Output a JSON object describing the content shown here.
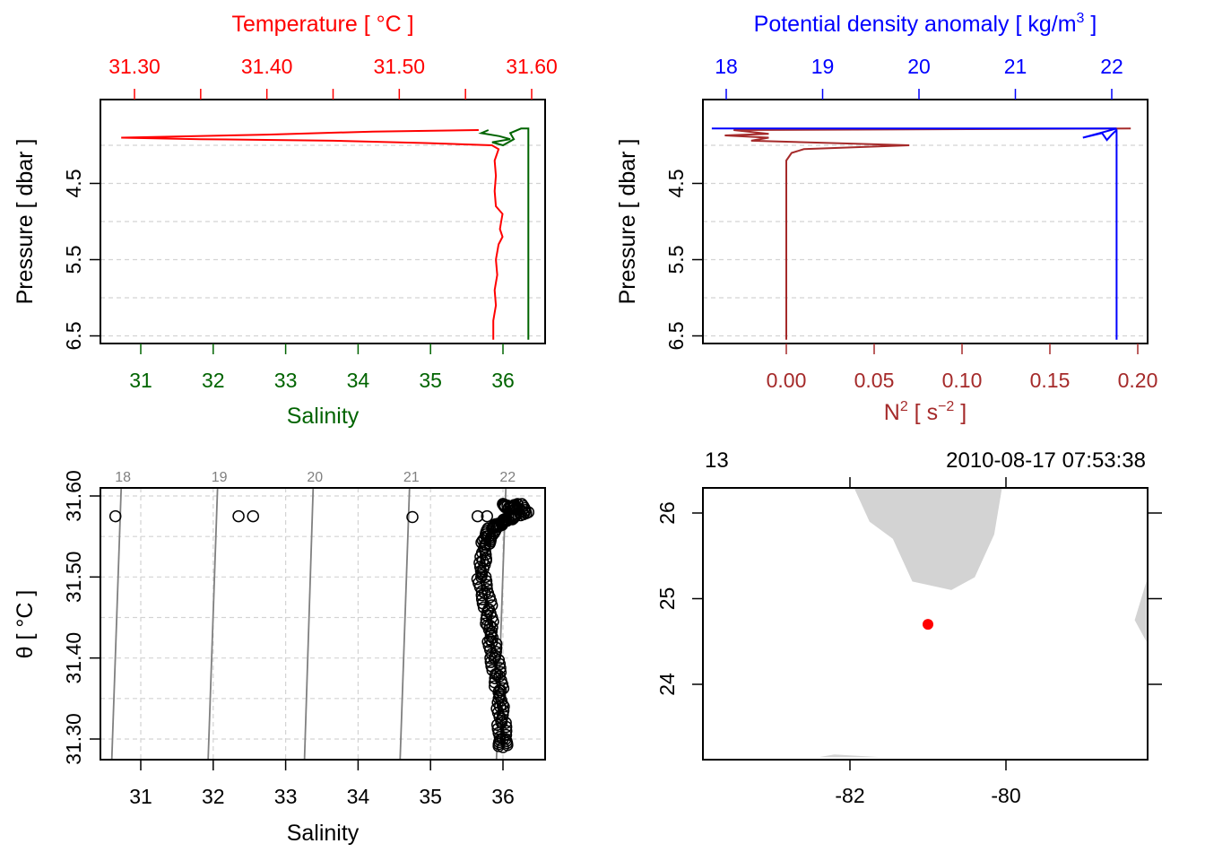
{
  "colors": {
    "temperature": "#ff0000",
    "salinity": "#006400",
    "density": "#0000ff",
    "n2": "#a52a2a",
    "isopycnal": "#808080",
    "land": "#d3d3d3",
    "station": "#ff0000",
    "grid": "#d3d3d3"
  },
  "chart_data": [
    {
      "id": "profile-salinity-temperature",
      "type": "line",
      "title": "",
      "top_axis": {
        "label": "Temperature [ °C ]",
        "ticks": [
          "31.30",
          "31.40",
          "31.50",
          "31.60"
        ],
        "range": [
          31.28,
          31.6
        ]
      },
      "bottom_axis": {
        "label": "Salinity",
        "ticks": [
          "31",
          "32",
          "33",
          "34",
          "35",
          "36"
        ],
        "range": [
          30.6,
          36.35
        ]
      },
      "left_axis": {
        "label": "Pressure [ dbar ]",
        "ticks": [
          "4.5",
          "5.5",
          "6.5"
        ],
        "range": [
          3.4,
          6.6
        ],
        "reversed": true,
        "gridlines": [
          4.0,
          4.5,
          5.0,
          5.5,
          6.0,
          6.5
        ]
      },
      "series": [
        {
          "name": "Temperature",
          "color": "temperature",
          "pressure": [
            3.8,
            3.82,
            3.86,
            3.9,
            3.92,
            3.94,
            3.97,
            4.0,
            4.05,
            4.2,
            4.4,
            4.6,
            4.8,
            4.9,
            5.0,
            5.1,
            5.2,
            5.3,
            5.5,
            5.7,
            5.9,
            6.1,
            6.3,
            6.55
          ],
          "value": [
            31.56,
            31.48,
            31.4,
            31.29,
            31.35,
            31.45,
            31.52,
            31.57,
            31.575,
            31.572,
            31.573,
            31.572,
            31.573,
            31.578,
            31.577,
            31.576,
            31.578,
            31.575,
            31.573,
            31.574,
            31.572,
            31.573,
            31.571,
            31.571
          ]
        },
        {
          "name": "Salinity",
          "color": "salinity",
          "pressure": [
            3.8,
            3.84,
            3.88,
            3.92,
            3.96,
            4.0,
            3.92,
            3.84,
            3.78,
            3.78,
            6.55
          ],
          "value": [
            35.8,
            35.7,
            35.95,
            36.1,
            35.85,
            36.0,
            36.15,
            36.1,
            36.25,
            36.35,
            36.35
          ]
        }
      ]
    },
    {
      "id": "profile-density-n2",
      "type": "line",
      "title": "",
      "top_axis": {
        "label": "Potential density anomaly [ kg/m",
        "label_superscript": "3",
        "label_suffix": " ]",
        "ticks": [
          "18",
          "19",
          "20",
          "21",
          "22"
        ],
        "range": [
          17.85,
          22.25
        ]
      },
      "bottom_axis": {
        "label": "N",
        "label_superscript": "2",
        "label_suffix": " [ s",
        "label_superscript2": "−2",
        "label_suffix2": " ]",
        "ticks": [
          "0.00",
          "0.05",
          "0.10",
          "0.15",
          "0.20"
        ],
        "range": [
          -0.04,
          0.2
        ]
      },
      "left_axis": {
        "label": "Pressure [ dbar ]",
        "ticks": [
          "4.5",
          "5.5",
          "6.5"
        ],
        "range": [
          3.4,
          6.6
        ],
        "reversed": true,
        "gridlines": [
          4.0,
          4.5,
          5.0,
          5.5,
          6.0,
          6.5
        ]
      },
      "series": [
        {
          "name": "Potential density anomaly",
          "color": "density",
          "pressure": [
            3.78,
            3.78,
            3.9,
            3.84,
            3.93,
            3.86,
            3.8,
            3.79,
            6.55
          ],
          "value": [
            17.85,
            22.05,
            21.7,
            21.9,
            21.95,
            22.0,
            22.05,
            22.05,
            22.05
          ]
        },
        {
          "name": "N2",
          "color": "n2",
          "pressure": [
            3.78,
            3.8,
            3.85,
            3.87,
            3.9,
            3.94,
            4.0,
            4.05,
            4.1,
            4.2,
            4.4,
            6.55
          ],
          "value": [
            0.196,
            -0.03,
            -0.01,
            -0.035,
            -0.01,
            -0.02,
            0.07,
            0.01,
            0.003,
            0.0,
            0.0,
            0.0
          ]
        }
      ]
    },
    {
      "id": "ts-diagram",
      "type": "scatter",
      "title": "",
      "xlabel": "Salinity",
      "ylabel": "θ [ °C ]",
      "x_ticks": [
        "31",
        "32",
        "33",
        "34",
        "35",
        "36"
      ],
      "y_ticks": [
        "31.30",
        "31.40",
        "31.50",
        "31.60"
      ],
      "xlim": [
        30.6,
        36.35
      ],
      "ylim": [
        31.28,
        31.6
      ],
      "isopycnals": [
        {
          "label": "18",
          "s_top": 30.73,
          "s_bottom": 30.6
        },
        {
          "label": "19",
          "s_top": 32.06,
          "s_bottom": 31.93
        },
        {
          "label": "20",
          "s_top": 33.38,
          "s_bottom": 33.26
        },
        {
          "label": "21",
          "s_top": 34.71,
          "s_bottom": 34.58
        },
        {
          "label": "22",
          "s_top": 36.04,
          "s_bottom": 35.91
        }
      ],
      "points": [
        [
          30.65,
          31.575
        ],
        [
          32.35,
          31.575
        ],
        [
          32.55,
          31.575
        ],
        [
          34.75,
          31.574
        ],
        [
          35.65,
          31.575
        ],
        [
          35.78,
          31.575
        ],
        [
          36.0,
          31.59
        ],
        [
          36.1,
          31.585
        ],
        [
          36.2,
          31.59
        ],
        [
          36.3,
          31.58
        ],
        [
          36.15,
          31.575
        ],
        [
          36.05,
          31.57
        ],
        [
          35.95,
          31.565
        ],
        [
          35.85,
          31.56
        ],
        [
          35.8,
          31.55
        ],
        [
          35.75,
          31.54
        ],
        [
          35.72,
          31.52
        ],
        [
          35.7,
          31.5
        ],
        [
          35.75,
          31.48
        ],
        [
          35.8,
          31.46
        ],
        [
          35.82,
          31.44
        ],
        [
          35.85,
          31.42
        ],
        [
          35.88,
          31.4
        ],
        [
          35.92,
          31.38
        ],
        [
          35.95,
          31.36
        ],
        [
          35.96,
          31.34
        ],
        [
          35.98,
          31.32
        ],
        [
          36.0,
          31.3
        ],
        [
          36.0,
          31.29
        ]
      ]
    },
    {
      "id": "station-map",
      "type": "map",
      "station_label": "13",
      "datetime": "2010-08-17 07:53:38",
      "x_ticks": [
        "-82",
        "-80"
      ],
      "y_ticks": [
        "24",
        "25",
        "26"
      ],
      "lon_range": [
        -83.9,
        -78.2
      ],
      "lat_range": [
        23.15,
        26.3
      ],
      "station": {
        "lon": -81.0,
        "lat": 24.7
      },
      "land": [
        [
          [
            -81.95,
            26.3
          ],
          [
            -81.75,
            25.9
          ],
          [
            -81.45,
            25.7
          ],
          [
            -81.2,
            25.2
          ],
          [
            -80.7,
            25.1
          ],
          [
            -80.4,
            25.25
          ],
          [
            -80.15,
            25.75
          ],
          [
            -80.05,
            26.3
          ]
        ],
        [
          [
            -78.2,
            25.2
          ],
          [
            -78.35,
            24.75
          ],
          [
            -78.2,
            24.5
          ]
        ],
        [
          [
            -82.4,
            23.15
          ],
          [
            -82.2,
            23.18
          ],
          [
            -81.6,
            23.15
          ]
        ]
      ]
    }
  ]
}
